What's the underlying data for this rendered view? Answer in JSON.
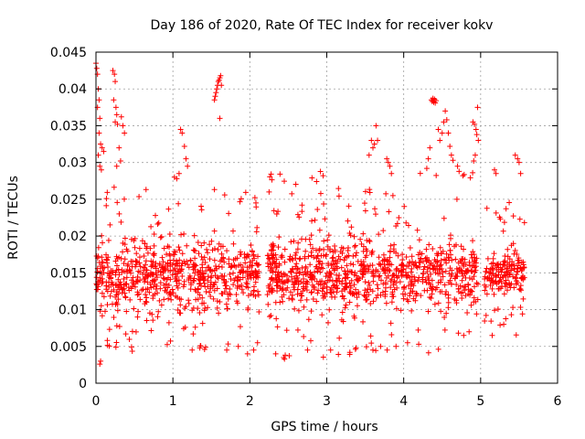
{
  "colors": {
    "series": "#ff0000",
    "grid": "#a0a0a0",
    "axis": "#000000"
  },
  "chart_data": {
    "type": "scatter",
    "title": "Day 186 of 2020, Rate Of TEC Index for receiver kokv",
    "xlabel": "GPS time / hours",
    "ylabel": "ROTI / TECUs",
    "xlim": [
      0,
      6
    ],
    "ylim": [
      0,
      0.045
    ],
    "grid": true,
    "marker": "+",
    "x_ticks": [
      "0",
      "1",
      "2",
      "3",
      "4",
      "5",
      "6"
    ],
    "y_ticks": [
      "0",
      "0.005",
      "0.01",
      "0.015",
      "0.02",
      "0.025",
      "0.03",
      "0.035",
      "0.04",
      "0.045"
    ],
    "x_tick_values": [
      0,
      1,
      2,
      3,
      4,
      5,
      6
    ],
    "y_tick_values": [
      0,
      0.005,
      0.01,
      0.015,
      0.02,
      0.025,
      0.03,
      0.035,
      0.04,
      0.045
    ],
    "series": [
      {
        "name": "ROTI",
        "segments": [
          {
            "t_start": 0.0,
            "t_end": 2.12,
            "core_low": 0.0085,
            "core_high": 0.021,
            "min": 0.004,
            "max": 0.027
          },
          {
            "t_start": 2.22,
            "t_end": 4.98,
            "core_low": 0.0085,
            "core_high": 0.021,
            "min": 0.0035,
            "max": 0.029
          },
          {
            "t_start": 5.05,
            "t_end": 5.57,
            "core_low": 0.011,
            "core_high": 0.019,
            "min": 0.0065,
            "max": 0.025
          }
        ],
        "points": [
          [
            0.0,
            0.0435
          ],
          [
            0.01,
            0.0428
          ],
          [
            0.02,
            0.042
          ],
          [
            0.03,
            0.04
          ],
          [
            0.04,
            0.0385
          ],
          [
            0.02,
            0.0375
          ],
          [
            0.05,
            0.036
          ],
          [
            0.04,
            0.034
          ],
          [
            0.06,
            0.0325
          ],
          [
            0.03,
            0.031
          ],
          [
            0.05,
            0.0295
          ],
          [
            0.07,
            0.029
          ],
          [
            0.08,
            0.032
          ],
          [
            0.1,
            0.0315
          ],
          [
            0.05,
            0.0026
          ],
          [
            0.06,
            0.003
          ],
          [
            0.22,
            0.0425
          ],
          [
            0.24,
            0.042
          ],
          [
            0.25,
            0.041
          ],
          [
            0.23,
            0.0385
          ],
          [
            0.26,
            0.0375
          ],
          [
            0.27,
            0.0365
          ],
          [
            0.25,
            0.0355
          ],
          [
            0.28,
            0.0352
          ],
          [
            0.33,
            0.0362
          ],
          [
            0.35,
            0.035
          ],
          [
            0.37,
            0.034
          ],
          [
            0.3,
            0.032
          ],
          [
            0.32,
            0.0302
          ],
          [
            0.27,
            0.0295
          ],
          [
            1.02,
            0.028
          ],
          [
            1.05,
            0.0278
          ],
          [
            1.08,
            0.0285
          ],
          [
            1.1,
            0.0345
          ],
          [
            1.12,
            0.034
          ],
          [
            1.15,
            0.0322
          ],
          [
            1.17,
            0.0305
          ],
          [
            1.19,
            0.0295
          ],
          [
            1.25,
            0.0045
          ],
          [
            1.35,
            0.0048
          ],
          [
            1.54,
            0.0385
          ],
          [
            1.55,
            0.039
          ],
          [
            1.56,
            0.0395
          ],
          [
            1.57,
            0.04
          ],
          [
            1.58,
            0.0405
          ],
          [
            1.59,
            0.041
          ],
          [
            1.6,
            0.0412
          ],
          [
            1.61,
            0.0415
          ],
          [
            1.62,
            0.0418
          ],
          [
            1.63,
            0.0405
          ],
          [
            1.61,
            0.036
          ],
          [
            1.7,
            0.0045
          ],
          [
            1.85,
            0.005
          ],
          [
            1.97,
            0.004
          ],
          [
            2.05,
            0.0045
          ],
          [
            2.1,
            0.0055
          ],
          [
            2.25,
            0.026
          ],
          [
            2.35,
            0.023
          ],
          [
            2.44,
            0.0035
          ],
          [
            2.45,
            0.0033
          ],
          [
            2.46,
            0.0038
          ],
          [
            2.75,
            0.0045
          ],
          [
            3.05,
            0.0045
          ],
          [
            3.3,
            0.0042
          ],
          [
            3.38,
            0.0048
          ],
          [
            3.58,
            0.033
          ],
          [
            3.6,
            0.032
          ],
          [
            3.62,
            0.0325
          ],
          [
            3.64,
            0.035
          ],
          [
            3.66,
            0.033
          ],
          [
            3.55,
            0.031
          ],
          [
            3.6,
            0.0045
          ],
          [
            3.7,
            0.005
          ],
          [
            3.78,
            0.0305
          ],
          [
            3.8,
            0.03
          ],
          [
            3.82,
            0.0295
          ],
          [
            3.84,
            0.0285
          ],
          [
            3.86,
            0.0255
          ],
          [
            3.9,
            0.005
          ],
          [
            4.05,
            0.0055
          ],
          [
            4.3,
            0.0292
          ],
          [
            4.32,
            0.0305
          ],
          [
            4.34,
            0.032
          ],
          [
            4.36,
            0.0385
          ],
          [
            4.37,
            0.0383
          ],
          [
            4.38,
            0.0387
          ],
          [
            4.39,
            0.0382
          ],
          [
            4.4,
            0.0386
          ],
          [
            4.41,
            0.0381
          ],
          [
            4.42,
            0.0384
          ],
          [
            4.45,
            0.0345
          ],
          [
            4.47,
            0.033
          ],
          [
            4.5,
            0.034
          ],
          [
            4.52,
            0.0355
          ],
          [
            4.54,
            0.037
          ],
          [
            4.56,
            0.0358
          ],
          [
            4.58,
            0.034
          ],
          [
            4.6,
            0.0322
          ],
          [
            4.62,
            0.031
          ],
          [
            4.64,
            0.0303
          ],
          [
            4.7,
            0.0295
          ],
          [
            4.72,
            0.0288
          ],
          [
            4.78,
            0.0065
          ],
          [
            4.85,
            0.007
          ],
          [
            4.9,
            0.0355
          ],
          [
            4.92,
            0.0352
          ],
          [
            4.94,
            0.0345
          ],
          [
            4.95,
            0.0338
          ],
          [
            4.96,
            0.0375
          ],
          [
            4.97,
            0.033
          ],
          [
            4.93,
            0.031
          ],
          [
            4.91,
            0.0302
          ],
          [
            5.18,
            0.029
          ],
          [
            5.2,
            0.0285
          ],
          [
            5.45,
            0.031
          ],
          [
            5.48,
            0.0305
          ],
          [
            5.5,
            0.03
          ],
          [
            5.52,
            0.0285
          ],
          [
            5.15,
            0.0065
          ],
          [
            5.3,
            0.008
          ]
        ]
      }
    ]
  }
}
